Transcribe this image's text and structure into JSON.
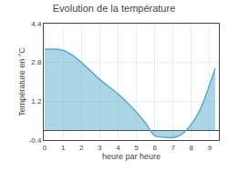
{
  "chart_data": {
    "type": "area",
    "title": "Evolution de la température",
    "xlabel": "heure par heure",
    "ylabel": "Température en °C",
    "x": [
      0,
      0.5,
      1.0,
      1.5,
      2.0,
      2.5,
      3.0,
      3.5,
      4.0,
      4.5,
      5.0,
      5.5,
      6.0,
      6.5,
      7.0,
      7.5,
      8.0,
      8.5,
      9.0,
      9.3
    ],
    "values": [
      3.35,
      3.35,
      3.3,
      3.1,
      2.8,
      2.45,
      2.1,
      1.8,
      1.5,
      1.15,
      0.75,
      0.3,
      -0.22,
      -0.28,
      -0.3,
      -0.15,
      0.25,
      0.9,
      1.9,
      2.55
    ],
    "color": "#5aabcc",
    "xlim": [
      -0.05,
      9.5
    ],
    "ylim": [
      -0.4,
      4.4
    ],
    "xticks": [
      0,
      1,
      2,
      3,
      4,
      5,
      6,
      7,
      8,
      9
    ],
    "yticks": [
      -0.4,
      1.2,
      2.8,
      4.4
    ],
    "grid": true
  }
}
